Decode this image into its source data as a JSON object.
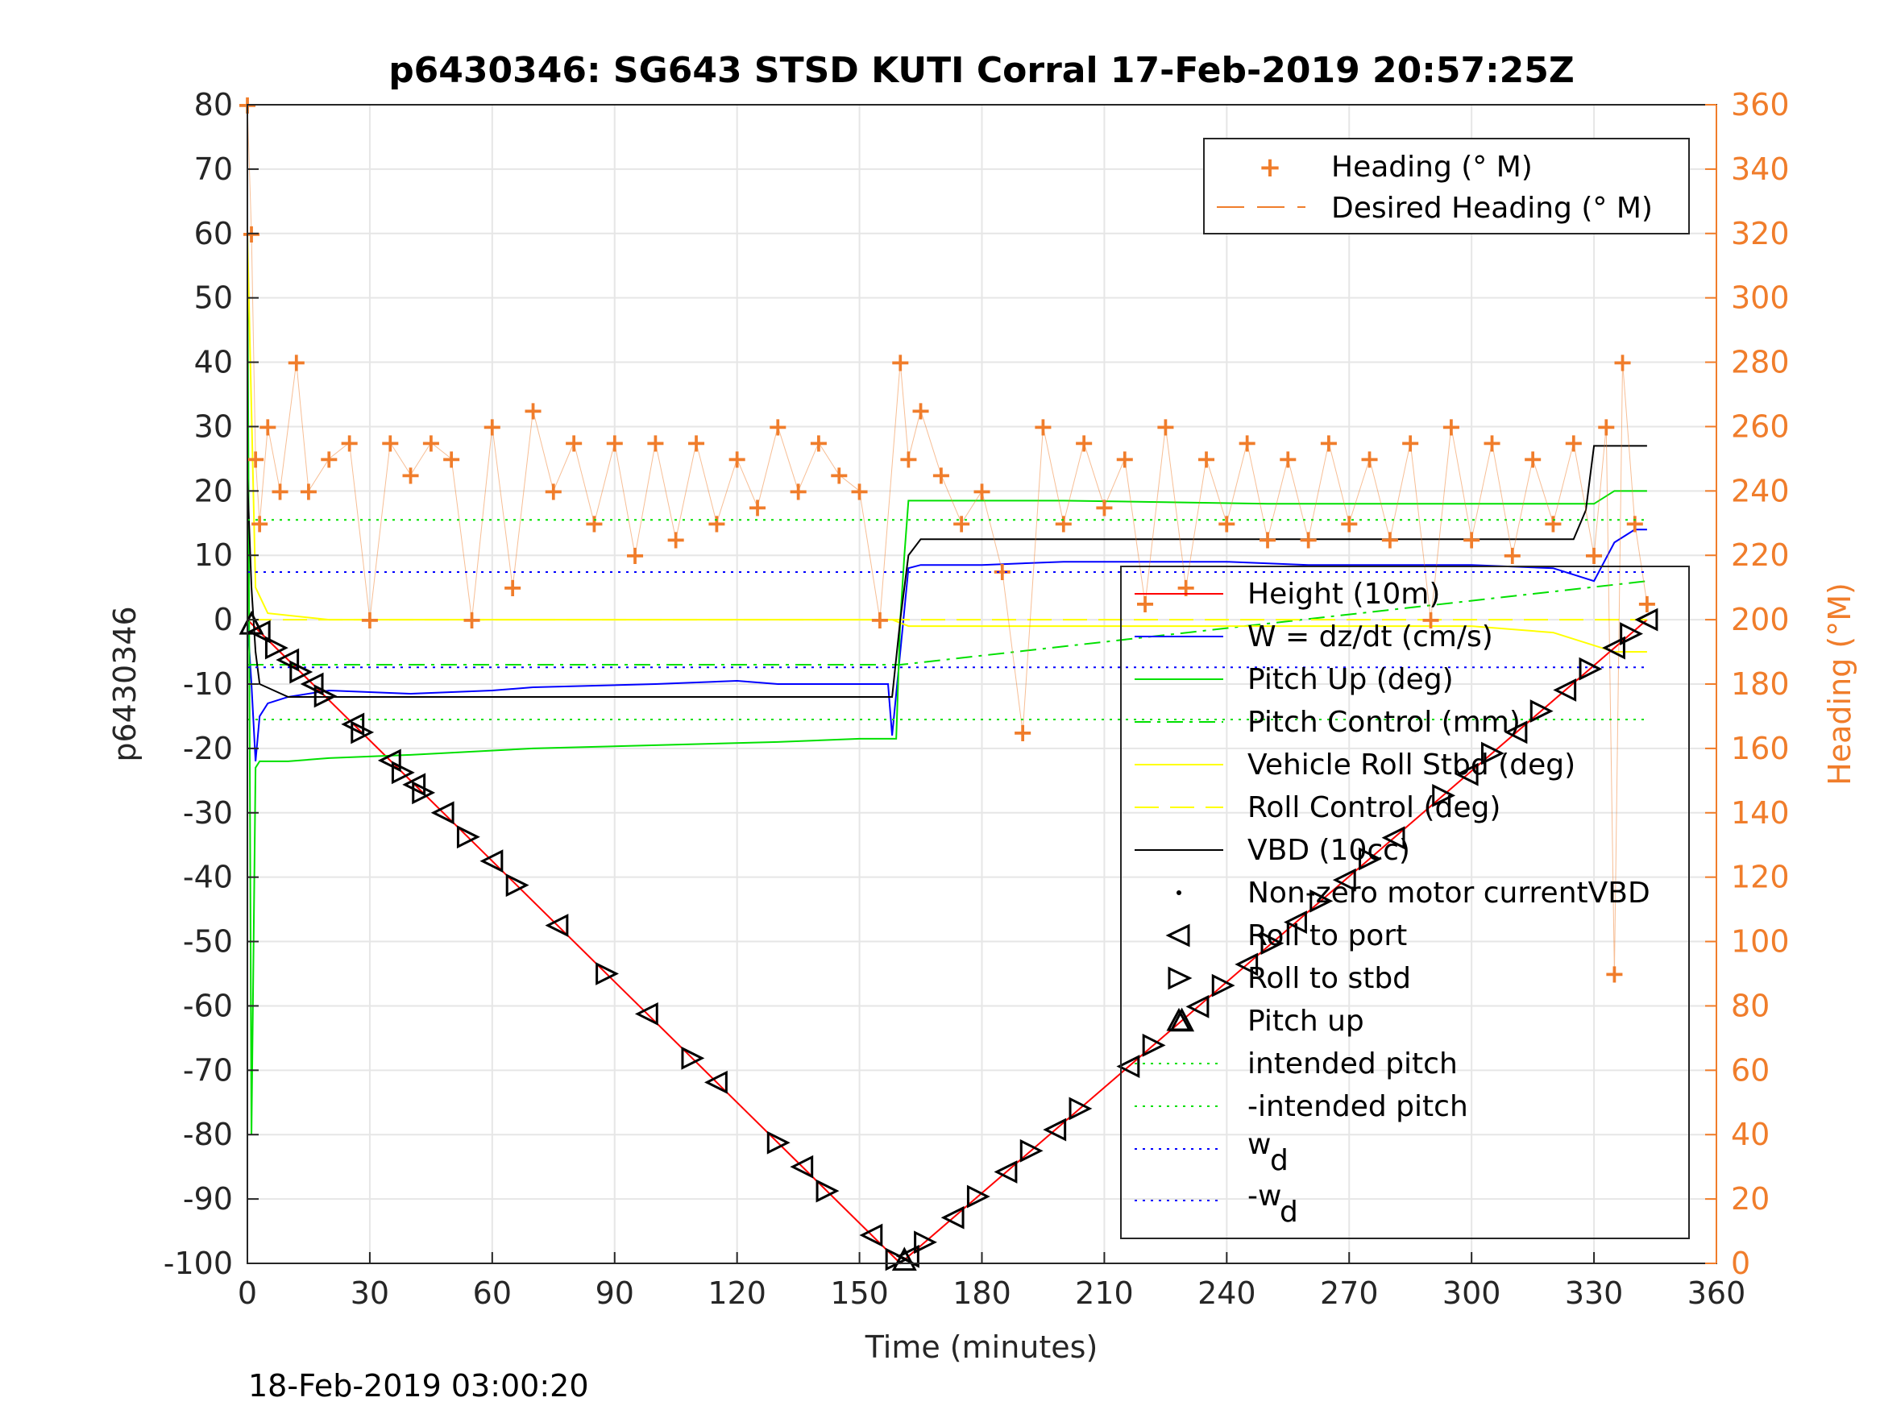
{
  "colors": {
    "heading": "#f07d2b",
    "height": "#ff0000",
    "w": "#0000ff",
    "pitch": "#00e000",
    "roll": "#ffff00",
    "vbd": "#000000",
    "grid": "#e6e6e6"
  },
  "chart_data": {
    "type": "line",
    "title": "p6430346: SG643 STSD KUTI Corral 17-Feb-2019 20:57:25Z",
    "xlabel": "Time (minutes)",
    "ylabel_left": "p6430346",
    "ylabel_right": "Heading (°M)",
    "xlim": [
      0,
      360
    ],
    "ylim_left": [
      -100,
      80
    ],
    "ylim_right": [
      0,
      360
    ],
    "grid": true,
    "legend_placement": [
      "top-right",
      "right"
    ],
    "x_ticks": [
      "0",
      "30",
      "60",
      "90",
      "120",
      "150",
      "180",
      "210",
      "240",
      "270",
      "300",
      "330",
      "360"
    ],
    "y_ticks_left": [
      "80",
      "70",
      "60",
      "50",
      "40",
      "30",
      "20",
      "10",
      "0",
      "-10",
      "-20",
      "-30",
      "-40",
      "-50",
      "-60",
      "-70",
      "-80",
      "-90",
      "-100"
    ],
    "y_ticks_right": [
      "360",
      "340",
      "320",
      "300",
      "280",
      "260",
      "240",
      "220",
      "200",
      "180",
      "160",
      "140",
      "120",
      "100",
      "80",
      "60",
      "40",
      "20",
      "0"
    ],
    "series": [
      {
        "key": "height",
        "name": "Height (10m)",
        "x": [
          0,
          160,
          343
        ],
        "y": [
          0,
          -100,
          0
        ]
      },
      {
        "key": "w",
        "name": "W = dz/dt (cm/s)",
        "x": [
          0,
          1,
          2,
          3,
          5,
          10,
          20,
          40,
          60,
          70,
          100,
          120,
          130,
          140,
          150,
          157,
          158,
          160,
          162,
          165,
          180,
          200,
          220,
          240,
          260,
          280,
          300,
          320,
          330,
          335,
          340,
          343
        ],
        "y": [
          0,
          -10,
          -22,
          -15,
          -13,
          -12,
          -11,
          -11.5,
          -11,
          -10.5,
          -10,
          -9.5,
          -10,
          -10,
          -10,
          -10,
          -18,
          -5,
          8,
          8.5,
          8.5,
          9,
          9,
          9,
          8.5,
          8.5,
          8.5,
          8,
          6,
          12,
          14,
          14
        ]
      },
      {
        "key": "pitch",
        "name": "Pitch Up (deg)",
        "x": [
          0,
          1,
          2,
          3,
          10,
          20,
          40,
          70,
          100,
          130,
          150,
          159,
          160,
          161,
          162,
          170,
          200,
          250,
          300,
          330,
          335,
          343
        ],
        "y": [
          60,
          -80,
          -23,
          -22,
          -22,
          -21.5,
          -21,
          -20,
          -19.5,
          -19,
          -18.5,
          -18.5,
          0,
          10,
          18.5,
          18.5,
          18.5,
          18,
          18,
          18,
          20,
          20
        ]
      },
      {
        "key": "pitch_control",
        "name": "Pitch Control (mm)",
        "x": [
          0,
          160,
          343
        ],
        "y": [
          -7,
          -7,
          6
        ]
      },
      {
        "key": "roll",
        "name": "Vehicle Roll Stbd (deg)",
        "x": [
          0,
          2,
          5,
          20,
          40,
          60,
          80,
          100,
          120,
          140,
          158,
          162,
          180,
          200,
          220,
          240,
          260,
          280,
          300,
          320,
          335,
          343
        ],
        "y": [
          60,
          5,
          1,
          0,
          0,
          0,
          0,
          0,
          0,
          0,
          0,
          -1,
          -1,
          -1,
          -1,
          -1,
          -1,
          -1,
          -1,
          -2,
          -5,
          -5
        ]
      },
      {
        "key": "roll_control",
        "name": "Roll Control (deg)",
        "x": [
          0,
          343
        ],
        "y": [
          0,
          0
        ]
      },
      {
        "key": "vbd",
        "name": "VBD (10cc)",
        "x": [
          0,
          1,
          2,
          3,
          10,
          20,
          40,
          60,
          80,
          100,
          120,
          140,
          155,
          158,
          160,
          162,
          165,
          170,
          200,
          250,
          300,
          325,
          328,
          330,
          343
        ],
        "y": [
          22,
          5,
          -5,
          -10,
          -12,
          -12,
          -12,
          -12,
          -12,
          -12,
          -12,
          -12,
          -12,
          -12,
          0,
          10,
          12.5,
          12.5,
          12.5,
          12.5,
          12.5,
          12.5,
          17,
          27,
          27
        ]
      },
      {
        "key": "heading",
        "name": "Heading (° M)",
        "x": [
          0,
          1,
          2,
          3,
          5,
          8,
          12,
          15,
          20,
          25,
          30,
          35,
          40,
          45,
          50,
          55,
          60,
          65,
          70,
          75,
          80,
          85,
          90,
          95,
          100,
          105,
          110,
          115,
          120,
          125,
          130,
          135,
          140,
          145,
          150,
          155,
          160,
          162,
          165,
          170,
          175,
          180,
          185,
          190,
          195,
          200,
          205,
          210,
          215,
          220,
          225,
          230,
          235,
          240,
          245,
          250,
          255,
          260,
          265,
          270,
          275,
          280,
          285,
          290,
          295,
          300,
          305,
          310,
          315,
          320,
          325,
          330,
          333,
          335,
          337,
          340,
          343
        ],
        "y": [
          360,
          320,
          250,
          230,
          260,
          240,
          280,
          240,
          250,
          255,
          200,
          255,
          245,
          255,
          250,
          200,
          260,
          210,
          265,
          240,
          255,
          230,
          255,
          220,
          255,
          225,
          255,
          230,
          250,
          235,
          260,
          240,
          255,
          245,
          240,
          200,
          280,
          250,
          265,
          245,
          230,
          240,
          215,
          165,
          260,
          230,
          255,
          235,
          250,
          205,
          260,
          210,
          250,
          230,
          255,
          225,
          250,
          225,
          255,
          230,
          250,
          225,
          255,
          200,
          260,
          225,
          255,
          220,
          250,
          230,
          255,
          220,
          260,
          90,
          280,
          230,
          205
        ]
      },
      {
        "key": "intended_pitch",
        "name": "intended pitch",
        "x": [
          0,
          343
        ],
        "y": [
          15.5,
          15.5
        ]
      },
      {
        "key": "neg_intended_pitch",
        "name": "-intended pitch",
        "x": [
          0,
          343
        ],
        "y": [
          -15.5,
          -15.5
        ]
      },
      {
        "key": "wd",
        "name": "w_d",
        "x": [
          0,
          343
        ],
        "y": [
          7.4,
          7.4
        ]
      },
      {
        "key": "neg_wd",
        "name": "-w_d",
        "x": [
          0,
          343
        ],
        "y": [
          -7.4,
          -7.4
        ]
      }
    ],
    "markers": {
      "nonzero_label": "Non-zero motor currentVBD",
      "roll_port_label": "Roll to port",
      "roll_stbd_label": "Roll to stbd",
      "pitch_up_label": "Pitch up",
      "roll_times": [
        3,
        7,
        10,
        13,
        16,
        19,
        26,
        28,
        35,
        38,
        41,
        43,
        48,
        54,
        60,
        66,
        76,
        88,
        98,
        109,
        115,
        130,
        136,
        142,
        153,
        159,
        162,
        166,
        173,
        179,
        186,
        192,
        198,
        204,
        216,
        222,
        233,
        239,
        245,
        251,
        257,
        263,
        269,
        275,
        281,
        293,
        299,
        305,
        311,
        317,
        323,
        329,
        335,
        339,
        343
      ],
      "pitch_up_times": [
        1,
        161,
        229
      ]
    },
    "legend_top": [
      "Heading (° M)",
      "Desired Heading (° M)"
    ],
    "legend_main": [
      "Height (10m)",
      "W = dz/dt (cm/s)",
      "Pitch Up (deg)",
      "Pitch Control (mm)",
      "Vehicle Roll Stbd (deg)",
      "Roll Control (deg)",
      "VBD (10cc)",
      "Non-zero motor currentVBD",
      "Roll to port",
      "Roll to stbd",
      "Pitch up",
      "intended pitch",
      "-intended pitch"
    ],
    "legend_wd": "w",
    "legend_wd_sub": "d",
    "legend_neg_wd": "-w",
    "legend_neg_wd_sub": "d"
  },
  "footer": "18-Feb-2019 03:00:20"
}
